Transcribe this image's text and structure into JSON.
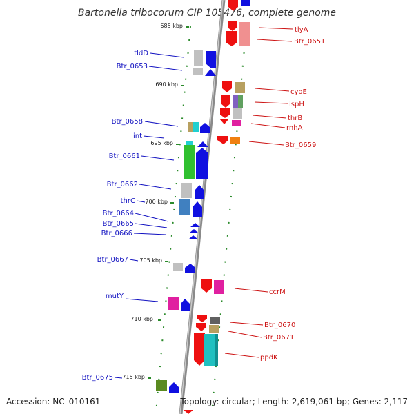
{
  "title": "Bartonella tribocorum CIP 105476, complete genome",
  "footer": {
    "accession": "Accession: NC_010161",
    "topology": "Topology: circular; Length: 2,619,061 bp; Genes: 2,117"
  },
  "colors": {
    "forward_label": "#1010c0",
    "reverse_label": "#cc1111",
    "tick": "#2a8a2a",
    "backbone": "#888888"
  },
  "kbp_markers": [
    "685 kbp",
    "690 kbp",
    "695 kbp",
    "700 kbp",
    "705 kbp",
    "710 kbp",
    "715 kbp"
  ],
  "genes_left": [
    {
      "label": "tldD"
    },
    {
      "label": "Btr_0653"
    },
    {
      "label": "Btr_0658"
    },
    {
      "label": "int"
    },
    {
      "label": "Btr_0661"
    },
    {
      "label": "Btr_0662"
    },
    {
      "label": "thrC"
    },
    {
      "label": "Btr_0664"
    },
    {
      "label": "Btr_0665"
    },
    {
      "label": "Btr_0666"
    },
    {
      "label": "Btr_0667"
    },
    {
      "label": "mutY"
    },
    {
      "label": "Btr_0675"
    }
  ],
  "genes_right": [
    {
      "label": "tlyA"
    },
    {
      "label": "Btr_0651"
    },
    {
      "label": "cyoE"
    },
    {
      "label": "ispH"
    },
    {
      "label": "thrB"
    },
    {
      "label": "rnhA"
    },
    {
      "label": "Btr_0659"
    },
    {
      "label": "ccrM"
    },
    {
      "label": "Btr_0670"
    },
    {
      "label": "Btr_0671"
    },
    {
      "label": "ppdK"
    }
  ]
}
